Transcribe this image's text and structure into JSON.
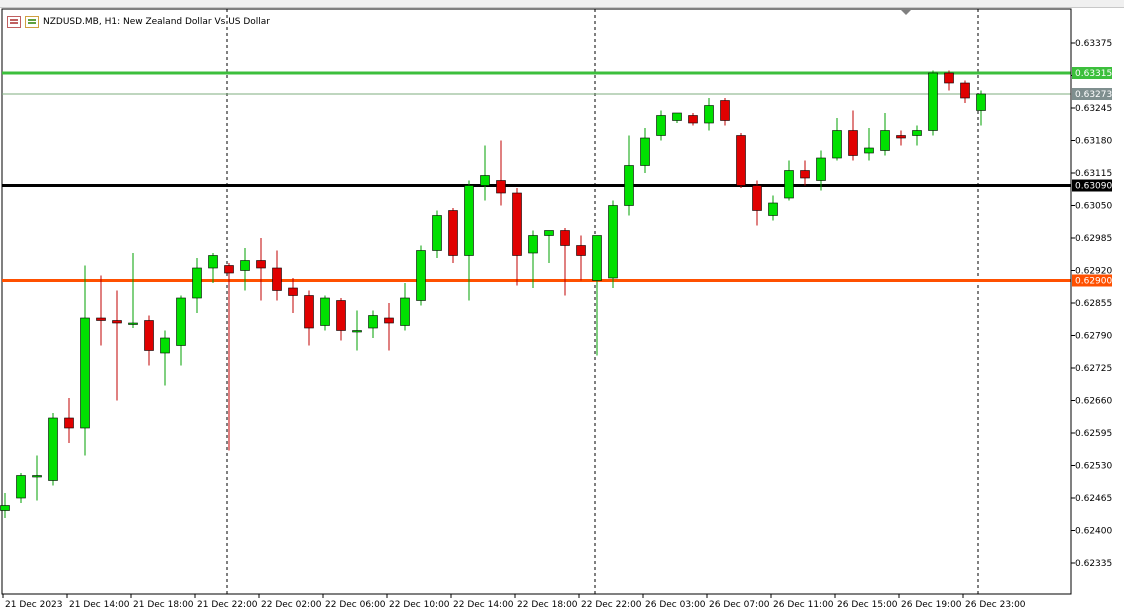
{
  "chart_header": {
    "symbol_text": "NZDUSD.MB, H1:  New Zealand Dollar Vs US Dollar"
  },
  "icons": [
    "chart-properties-icon",
    "trading-icon"
  ],
  "colors": {
    "background": "#ffffff",
    "bull": "#00e000",
    "bear": "#e00000",
    "wick_bull": "#00a000",
    "wick_bear": "#c00000",
    "border": "#000000",
    "level_green": "#3cbf3c",
    "level_black": "#000000",
    "level_orange": "#ff5000",
    "current_price_line": "#7fae7f",
    "current_price_tag": "#7f8f8f"
  },
  "chart_data": {
    "type": "candlestick",
    "symbol": "NZDUSD.MB",
    "timeframe": "H1",
    "description": "New Zealand Dollar Vs US Dollar",
    "ylim": [
      0.6229,
      0.63425
    ],
    "y_ticks": [
      "0.63375",
      "0.63310",
      "0.63245",
      "0.63180",
      "0.63115",
      "0.63050",
      "0.62985",
      "0.62920",
      "0.62855",
      "0.62790",
      "0.62725",
      "0.62660",
      "0.62595",
      "0.62530",
      "0.62465",
      "0.62400",
      "0.62335"
    ],
    "x_ticks": [
      "21 Dec 2023",
      "21 Dec 14:00",
      "21 Dec 18:00",
      "21 Dec 22:00",
      "22 Dec 02:00",
      "22 Dec 06:00",
      "22 Dec 10:00",
      "22 Dec 14:00",
      "22 Dec 18:00",
      "22 Dec 22:00",
      "26 Dec 03:00",
      "26 Dec 07:00",
      "26 Dec 11:00",
      "26 Dec 15:00",
      "26 Dec 19:00",
      "26 Dec 23:00"
    ],
    "separators": [
      "21 Dec 22:00",
      "22 Dec 22:00",
      "26 Dec 23:00"
    ],
    "levels": [
      {
        "price": 0.63315,
        "label": "0.63315",
        "color": "#3cbf3c"
      },
      {
        "price": 0.6309,
        "label": "0.63090",
        "color": "#000000"
      },
      {
        "price": 0.629,
        "label": "0.62900",
        "color": "#ff5000"
      }
    ],
    "current_price": {
      "price": 0.63273,
      "label": "0.63273"
    },
    "candles": [
      [
        0.6244,
        0.62475,
        0.62425,
        0.6245
      ],
      [
        0.62465,
        0.62515,
        0.62455,
        0.6251
      ],
      [
        0.6251,
        0.6255,
        0.6246,
        0.6251
      ],
      [
        0.625,
        0.62635,
        0.6249,
        0.62625
      ],
      [
        0.62625,
        0.62665,
        0.62575,
        0.62605
      ],
      [
        0.62605,
        0.6293,
        0.6255,
        0.62825
      ],
      [
        0.62825,
        0.6291,
        0.6277,
        0.6282
      ],
      [
        0.6282,
        0.6288,
        0.6266,
        0.62815
      ],
      [
        0.62815,
        0.62955,
        0.62805,
        0.62815
      ],
      [
        0.6282,
        0.6283,
        0.6273,
        0.6276
      ],
      [
        0.62755,
        0.628,
        0.6269,
        0.62785
      ],
      [
        0.6277,
        0.6287,
        0.6273,
        0.62865
      ],
      [
        0.62865,
        0.62945,
        0.62835,
        0.62925
      ],
      [
        0.62925,
        0.62955,
        0.62895,
        0.6295
      ],
      [
        0.6293,
        0.62935,
        0.6256,
        0.62915
      ],
      [
        0.6292,
        0.62965,
        0.6288,
        0.6294
      ],
      [
        0.6294,
        0.62985,
        0.6286,
        0.62925
      ],
      [
        0.62925,
        0.6296,
        0.6286,
        0.6288
      ],
      [
        0.62885,
        0.62905,
        0.62835,
        0.6287
      ],
      [
        0.6287,
        0.6288,
        0.6277,
        0.62805
      ],
      [
        0.6281,
        0.6287,
        0.628,
        0.62865
      ],
      [
        0.6286,
        0.62865,
        0.6278,
        0.628
      ],
      [
        0.628,
        0.6284,
        0.6276,
        0.628
      ],
      [
        0.62805,
        0.6284,
        0.62785,
        0.6283
      ],
      [
        0.62825,
        0.62855,
        0.6276,
        0.62815
      ],
      [
        0.6281,
        0.62895,
        0.628,
        0.62865
      ],
      [
        0.6286,
        0.6297,
        0.6285,
        0.6296
      ],
      [
        0.6296,
        0.6304,
        0.62945,
        0.6303
      ],
      [
        0.6304,
        0.63045,
        0.62935,
        0.6295
      ],
      [
        0.6295,
        0.631,
        0.6286,
        0.6309
      ],
      [
        0.6309,
        0.6317,
        0.6306,
        0.6311
      ],
      [
        0.631,
        0.6318,
        0.6305,
        0.63075
      ],
      [
        0.63075,
        0.63085,
        0.6289,
        0.6295
      ],
      [
        0.62955,
        0.63,
        0.62885,
        0.6299
      ],
      [
        0.6299,
        0.63,
        0.62935,
        0.63
      ],
      [
        0.63,
        0.63005,
        0.6287,
        0.6297
      ],
      [
        0.6297,
        0.6299,
        0.629,
        0.6295
      ],
      [
        0.629,
        0.62985,
        0.6275,
        0.6299
      ],
      [
        0.62905,
        0.6306,
        0.62885,
        0.6305
      ],
      [
        0.6305,
        0.6319,
        0.6303,
        0.6313
      ],
      [
        0.6313,
        0.63205,
        0.63115,
        0.63185
      ],
      [
        0.6319,
        0.6324,
        0.6318,
        0.6323
      ],
      [
        0.6322,
        0.63235,
        0.63215,
        0.63235
      ],
      [
        0.6323,
        0.63235,
        0.6321,
        0.63215
      ],
      [
        0.63215,
        0.63265,
        0.632,
        0.6325
      ],
      [
        0.6326,
        0.63265,
        0.6321,
        0.6322
      ],
      [
        0.6319,
        0.63195,
        0.63085,
        0.6309
      ],
      [
        0.6309,
        0.631,
        0.6301,
        0.6304
      ],
      [
        0.6303,
        0.6307,
        0.6302,
        0.63055
      ],
      [
        0.63065,
        0.6314,
        0.6306,
        0.6312
      ],
      [
        0.6312,
        0.6314,
        0.6309,
        0.63105
      ],
      [
        0.631,
        0.6316,
        0.6308,
        0.63145
      ],
      [
        0.63145,
        0.63225,
        0.6314,
        0.632
      ],
      [
        0.632,
        0.6324,
        0.6314,
        0.6315
      ],
      [
        0.63155,
        0.63205,
        0.6314,
        0.63165
      ],
      [
        0.6316,
        0.63235,
        0.6315,
        0.632
      ],
      [
        0.6319,
        0.632,
        0.6317,
        0.63185
      ],
      [
        0.6319,
        0.6321,
        0.6317,
        0.632
      ],
      [
        0.632,
        0.6332,
        0.6319,
        0.63315
      ],
      [
        0.63315,
        0.6332,
        0.6328,
        0.63295
      ],
      [
        0.63295,
        0.633,
        0.63255,
        0.63265
      ],
      [
        0.6324,
        0.6328,
        0.6321,
        0.63273
      ]
    ]
  }
}
